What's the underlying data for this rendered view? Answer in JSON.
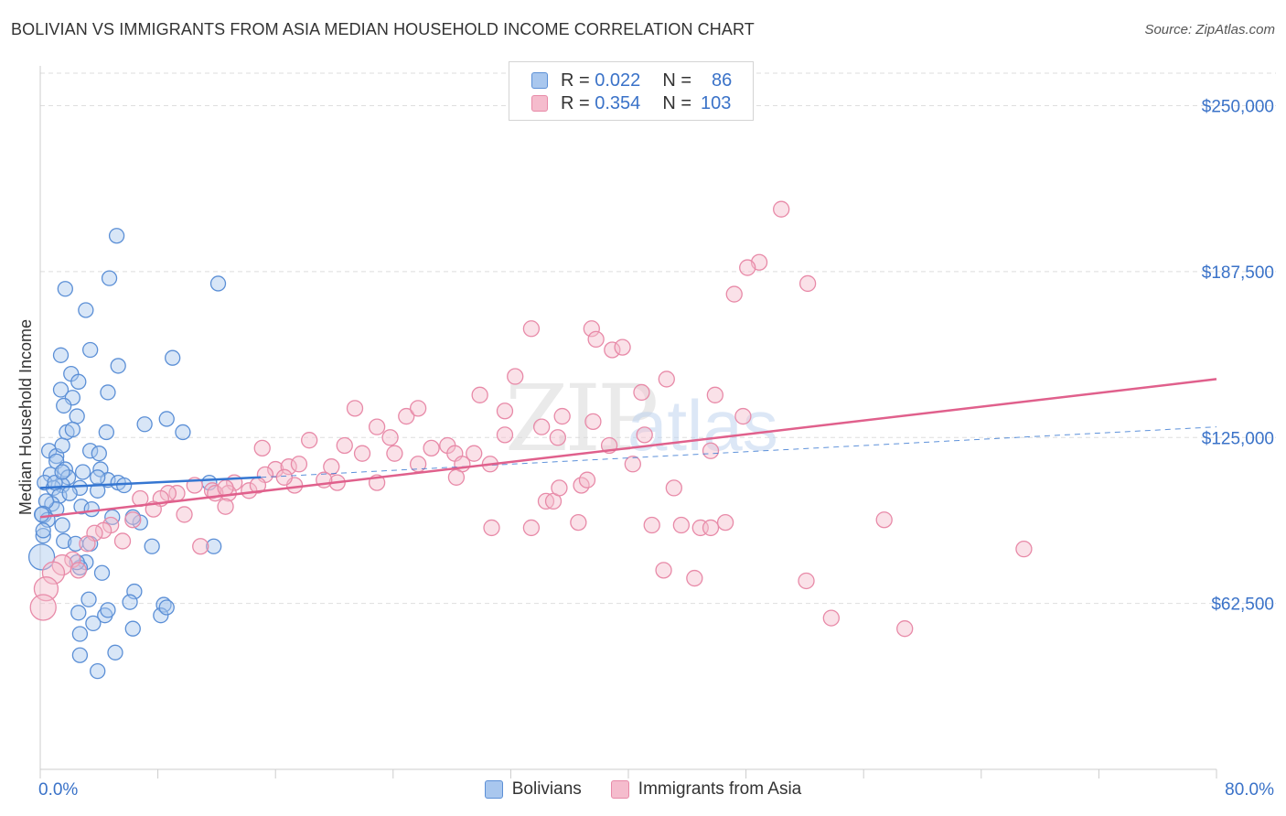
{
  "header": {
    "title": "BOLIVIAN VS IMMIGRANTS FROM ASIA MEDIAN HOUSEHOLD INCOME CORRELATION CHART",
    "source": "Source: ZipAtlas.com"
  },
  "legend": {
    "rows": [
      {
        "r_label": "R =",
        "r_value": "0.022",
        "n_label": "N =",
        "n_value": "86"
      },
      {
        "r_label": "R =",
        "r_value": "0.354",
        "n_label": "N =",
        "n_value": "103"
      }
    ]
  },
  "bottom_legend": [
    "Bolivians",
    "Immigrants from Asia"
  ],
  "watermark": {
    "zip": "ZIP",
    "atlas": "atlas"
  },
  "colors": {
    "blue_fill": "#a9c7ee",
    "blue_stroke": "#5b8fd6",
    "blue_line": "#3576d1",
    "pink_fill": "#f5bccd",
    "pink_stroke": "#e88aa8",
    "pink_line": "#e0608c",
    "axis_text": "#3a72c8",
    "grid": "#dedede"
  },
  "chart_data": {
    "type": "scatter",
    "title": "BOLIVIAN VS IMMIGRANTS FROM ASIA MEDIAN HOUSEHOLD INCOME CORRELATION CHART",
    "xlabel": "",
    "ylabel": "Median Household Income",
    "xlim": [
      0,
      80
    ],
    "ylim": [
      0,
      265000
    ],
    "x_tick_labels": {
      "min": "0.0%",
      "max": "80.0%"
    },
    "y_ticks": [
      {
        "value": 62500,
        "label": "$62,500"
      },
      {
        "value": 125000,
        "label": "$125,000"
      },
      {
        "value": 187500,
        "label": "$187,500"
      },
      {
        "value": 250000,
        "label": "$250,000"
      }
    ],
    "series": [
      {
        "name": "Bolivians",
        "R": 0.022,
        "N": 86,
        "trend_solid": [
          [
            0,
            106000
          ],
          [
            15,
            110000
          ]
        ],
        "trend_dashed": [
          [
            15,
            110000
          ],
          [
            80,
            129000
          ]
        ],
        "points": [
          [
            5.2,
            201000
          ],
          [
            4.7,
            185000
          ],
          [
            1.7,
            181000
          ],
          [
            12.1,
            183000
          ],
          [
            3.1,
            173000
          ],
          [
            1.4,
            156000
          ],
          [
            3.4,
            158000
          ],
          [
            5.3,
            152000
          ],
          [
            9.0,
            155000
          ],
          [
            2.1,
            149000
          ],
          [
            2.6,
            146000
          ],
          [
            4.6,
            142000
          ],
          [
            1.4,
            143000
          ],
          [
            2.2,
            140000
          ],
          [
            1.6,
            137000
          ],
          [
            2.5,
            133000
          ],
          [
            1.8,
            127000
          ],
          [
            2.2,
            128000
          ],
          [
            4.5,
            127000
          ],
          [
            7.1,
            130000
          ],
          [
            8.6,
            132000
          ],
          [
            9.7,
            127000
          ],
          [
            0.6,
            120000
          ],
          [
            1.1,
            118000
          ],
          [
            1.5,
            122000
          ],
          [
            3.4,
            120000
          ],
          [
            4.0,
            119000
          ],
          [
            1.1,
            116000
          ],
          [
            1.7,
            113000
          ],
          [
            2.9,
            112000
          ],
          [
            0.7,
            111000
          ],
          [
            1.9,
            110000
          ],
          [
            4.1,
            113000
          ],
          [
            0.3,
            108000
          ],
          [
            1.5,
            107000
          ],
          [
            2.7,
            106000
          ],
          [
            4.6,
            109000
          ],
          [
            5.3,
            108000
          ],
          [
            5.7,
            107000
          ],
          [
            0.9,
            106000
          ],
          [
            1.3,
            103000
          ],
          [
            2.0,
            104000
          ],
          [
            3.9,
            105000
          ],
          [
            0.8,
            100000
          ],
          [
            1.1,
            98000
          ],
          [
            0.4,
            101000
          ],
          [
            2.8,
            99000
          ],
          [
            0.2,
            96000
          ],
          [
            0.5,
            94000
          ],
          [
            1.5,
            92000
          ],
          [
            3.5,
            98000
          ],
          [
            4.9,
            95000
          ],
          [
            6.8,
            93000
          ],
          [
            0.2,
            88000
          ],
          [
            1.6,
            86000
          ],
          [
            2.4,
            85000
          ],
          [
            3.4,
            85000
          ],
          [
            7.6,
            84000
          ],
          [
            11.8,
            84000
          ],
          [
            3.1,
            78000
          ],
          [
            2.7,
            76000
          ],
          [
            4.2,
            74000
          ],
          [
            0.1,
            80000
          ],
          [
            6.4,
            67000
          ],
          [
            3.3,
            64000
          ],
          [
            6.1,
            63000
          ],
          [
            8.4,
            62000
          ],
          [
            2.6,
            59000
          ],
          [
            4.4,
            58000
          ],
          [
            4.6,
            60000
          ],
          [
            8.2,
            58000
          ],
          [
            3.6,
            55000
          ],
          [
            6.3,
            53000
          ],
          [
            2.7,
            51000
          ],
          [
            5.1,
            44000
          ],
          [
            2.7,
            43000
          ],
          [
            3.9,
            37000
          ],
          [
            8.6,
            61000
          ],
          [
            0.2,
            90000
          ],
          [
            1.0,
            108000
          ],
          [
            3.9,
            110000
          ],
          [
            0.1,
            96000
          ],
          [
            11.5,
            108000
          ],
          [
            2.5,
            78000
          ],
          [
            1.5,
            112000
          ],
          [
            6.3,
            95000
          ]
        ]
      },
      {
        "name": "Immigrants from Asia",
        "R": 0.354,
        "N": 103,
        "trend": [
          [
            0,
            95000
          ],
          [
            80,
            147000
          ]
        ],
        "points": [
          [
            50.4,
            211000
          ],
          [
            48.9,
            191000
          ],
          [
            48.1,
            189000
          ],
          [
            47.2,
            179000
          ],
          [
            52.2,
            183000
          ],
          [
            33.4,
            166000
          ],
          [
            37.5,
            166000
          ],
          [
            37.8,
            162000
          ],
          [
            38.9,
            158000
          ],
          [
            39.6,
            159000
          ],
          [
            32.3,
            148000
          ],
          [
            42.6,
            147000
          ],
          [
            40.9,
            142000
          ],
          [
            45.9,
            141000
          ],
          [
            29.9,
            141000
          ],
          [
            31.6,
            135000
          ],
          [
            34.1,
            129000
          ],
          [
            35.5,
            133000
          ],
          [
            37.6,
            131000
          ],
          [
            21.4,
            136000
          ],
          [
            22.9,
            129000
          ],
          [
            23.8,
            125000
          ],
          [
            24.9,
            133000
          ],
          [
            25.7,
            136000
          ],
          [
            26.6,
            121000
          ],
          [
            27.7,
            122000
          ],
          [
            28.2,
            119000
          ],
          [
            28.7,
            115000
          ],
          [
            29.5,
            119000
          ],
          [
            30.6,
            115000
          ],
          [
            31.6,
            126000
          ],
          [
            35.2,
            125000
          ],
          [
            38.7,
            122000
          ],
          [
            40.3,
            115000
          ],
          [
            45.6,
            120000
          ],
          [
            47.8,
            133000
          ],
          [
            18.3,
            124000
          ],
          [
            15.1,
            121000
          ],
          [
            16.0,
            113000
          ],
          [
            16.9,
            114000
          ],
          [
            17.6,
            115000
          ],
          [
            19.8,
            114000
          ],
          [
            20.7,
            122000
          ],
          [
            21.9,
            119000
          ],
          [
            24.1,
            119000
          ],
          [
            25.7,
            115000
          ],
          [
            20.2,
            108000
          ],
          [
            22.9,
            108000
          ],
          [
            19.3,
            109000
          ],
          [
            17.3,
            107000
          ],
          [
            16.6,
            110000
          ],
          [
            15.3,
            111000
          ],
          [
            13.2,
            108000
          ],
          [
            14.2,
            105000
          ],
          [
            12.8,
            104000
          ],
          [
            11.7,
            105000
          ],
          [
            10.5,
            107000
          ],
          [
            9.3,
            104000
          ],
          [
            8.7,
            104000
          ],
          [
            8.2,
            102000
          ],
          [
            7.7,
            98000
          ],
          [
            6.8,
            102000
          ],
          [
            6.3,
            94000
          ],
          [
            9.8,
            96000
          ],
          [
            12.6,
            99000
          ],
          [
            14.8,
            107000
          ],
          [
            28.3,
            110000
          ],
          [
            34.4,
            101000
          ],
          [
            34.9,
            101000
          ],
          [
            35.3,
            106000
          ],
          [
            36.8,
            107000
          ],
          [
            37.2,
            109000
          ],
          [
            43.1,
            106000
          ],
          [
            33.4,
            91000
          ],
          [
            30.7,
            91000
          ],
          [
            36.6,
            93000
          ],
          [
            41.6,
            92000
          ],
          [
            43.6,
            92000
          ],
          [
            44.9,
            91000
          ],
          [
            45.6,
            91000
          ],
          [
            46.6,
            93000
          ],
          [
            57.4,
            94000
          ],
          [
            42.4,
            75000
          ],
          [
            44.5,
            72000
          ],
          [
            52.1,
            71000
          ],
          [
            53.8,
            57000
          ],
          [
            58.8,
            53000
          ],
          [
            66.9,
            83000
          ],
          [
            10.9,
            84000
          ],
          [
            5.6,
            86000
          ],
          [
            4.8,
            92000
          ],
          [
            4.3,
            90000
          ],
          [
            3.7,
            89000
          ],
          [
            3.2,
            85000
          ],
          [
            2.2,
            79000
          ],
          [
            1.5,
            77000
          ],
          [
            0.9,
            74000
          ],
          [
            0.4,
            68000
          ],
          [
            0.2,
            61000
          ],
          [
            2.6,
            75000
          ],
          [
            11.9,
            104000
          ],
          [
            12.6,
            106000
          ],
          [
            41.1,
            126000
          ]
        ]
      }
    ]
  }
}
